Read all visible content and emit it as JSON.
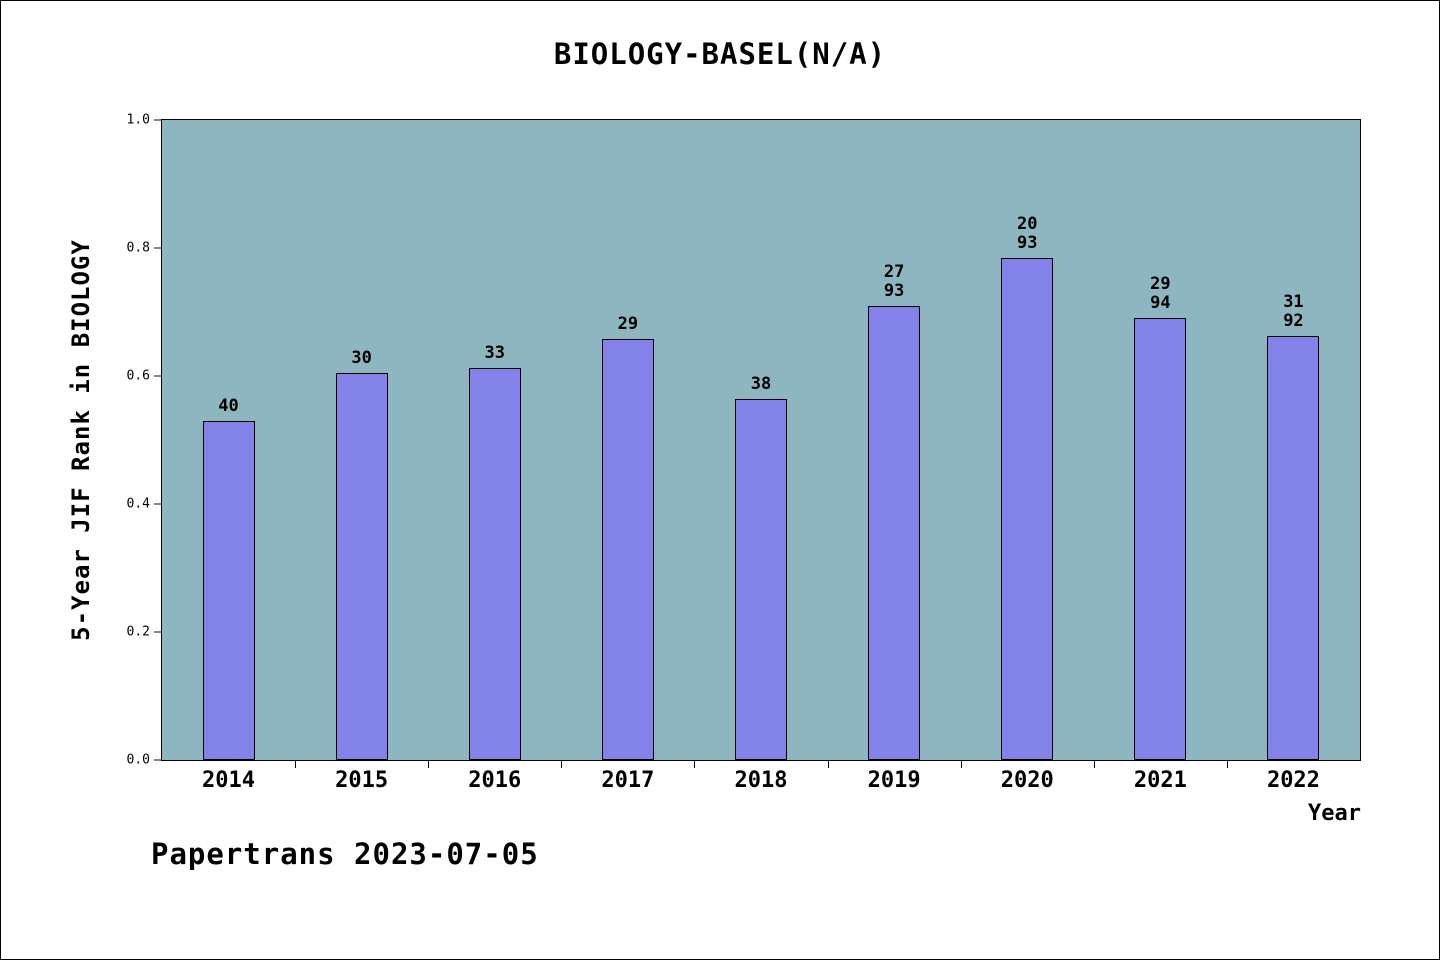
{
  "chart_data": {
    "type": "bar",
    "title": "BIOLOGY-BASEL(N/A)",
    "xlabel": "Year",
    "ylabel": "5-Year JIF Rank in BIOLOGY",
    "ylim": [
      0.0,
      1.0
    ],
    "yticks": [
      "0.0",
      "0.2",
      "0.4",
      "0.6",
      "0.8",
      "1.0"
    ],
    "grid": false,
    "legend": "none",
    "categories": [
      "2014",
      "2015",
      "2016",
      "2017",
      "2018",
      "2019",
      "2020",
      "2021",
      "2022"
    ],
    "values": [
      0.529,
      0.605,
      0.612,
      0.658,
      0.564,
      0.71,
      0.785,
      0.69,
      0.663
    ],
    "bar_labels": [
      [
        "40"
      ],
      [
        "30"
      ],
      [
        "33"
      ],
      [
        "29"
      ],
      [
        "38"
      ],
      [
        "27",
        "93"
      ],
      [
        "20",
        "93"
      ],
      [
        "29",
        "94"
      ],
      [
        "31",
        "92"
      ]
    ],
    "bar_color": "#8282e8",
    "plot_bg": "#8eb6c0",
    "axis_color": "#000000"
  },
  "footer": {
    "text": "Papertrans 2023-07-05"
  }
}
